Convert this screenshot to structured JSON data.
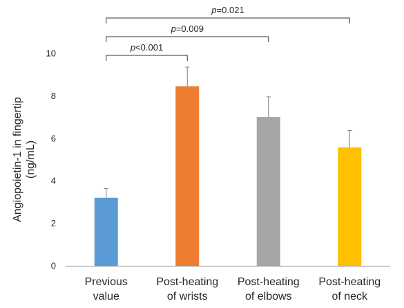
{
  "chart_data": {
    "type": "bar",
    "title": "",
    "xlabel": "",
    "ylabel": [
      "Angiopoietin-1 in fingertip",
      "(ng/mL)"
    ],
    "ylim": [
      0,
      10
    ],
    "yticks": [
      0,
      2,
      4,
      6,
      8,
      10
    ],
    "grid": false,
    "categories": [
      [
        "Previous",
        "value"
      ],
      [
        "Post-heating",
        "of wrists"
      ],
      [
        "Post-heating",
        "of elbows"
      ],
      [
        "Post-heating",
        "of neck"
      ]
    ],
    "values": [
      3.2,
      8.45,
      7.0,
      5.57
    ],
    "error_plus": [
      0.43,
      0.9,
      0.95,
      0.8
    ],
    "colors": [
      "#5B9BD5",
      "#ED7D31",
      "#A5A5A5",
      "#FFC000"
    ],
    "annotations": [
      {
        "from": 0,
        "to": 1,
        "p_label": "p",
        "p_value": "<0.001"
      },
      {
        "from": 0,
        "to": 2,
        "p_label": "p",
        "p_value": "=0.009"
      },
      {
        "from": 0,
        "to": 3,
        "p_label": "p",
        "p_value": "=0.021"
      }
    ]
  }
}
